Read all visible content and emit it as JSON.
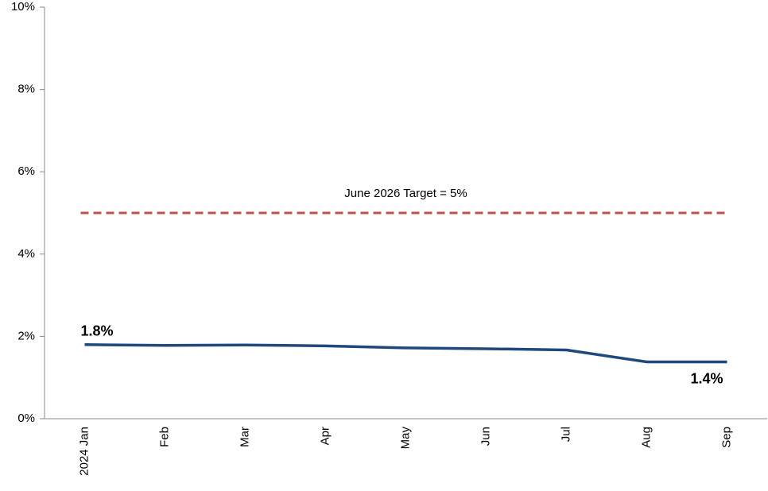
{
  "chart_data": {
    "type": "line",
    "categories": [
      "2024 Jan",
      "Feb",
      "Mar",
      "Apr",
      "May",
      "Jun",
      "Jul",
      "Aug",
      "Sep"
    ],
    "series": [
      {
        "color": "#1f497d",
        "values": [
          1.8,
          1.78,
          1.79,
          1.77,
          1.72,
          1.7,
          1.67,
          1.38,
          1.38
        ],
        "value_labels": [
          "1.8%",
          null,
          null,
          null,
          null,
          null,
          null,
          null,
          "1.4%"
        ]
      }
    ],
    "ylim": [
      0,
      10
    ],
    "yticks": [
      {
        "value": 0,
        "label": "0%"
      },
      {
        "value": 2,
        "label": "2%"
      },
      {
        "value": 4,
        "label": "4%"
      },
      {
        "value": 6,
        "label": "6%"
      },
      {
        "value": 8,
        "label": "8%"
      },
      {
        "value": 10,
        "label": "10%"
      }
    ],
    "target": {
      "label": "June 2026 Target = 5%",
      "value": 5,
      "color": "#c0504d"
    }
  }
}
